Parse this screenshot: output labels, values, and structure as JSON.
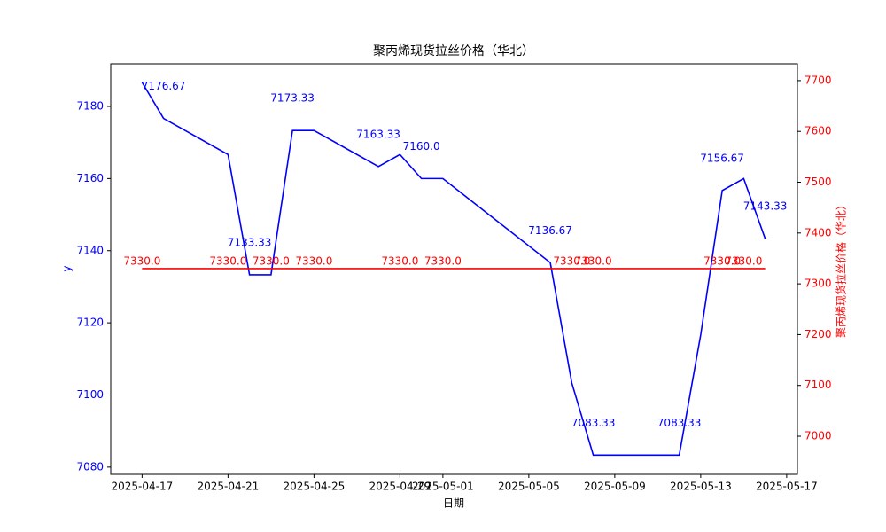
{
  "chart_data": {
    "type": "line",
    "title": "聚丙烯现货拉丝价格（华北）",
    "x_label": "日期",
    "y_label": "y",
    "y2_label": "聚丙烯现货拉丝价格（华北）",
    "x": [
      "2025-04-17",
      "2025-04-18",
      "2025-04-21",
      "2025-04-22",
      "2025-04-23",
      "2025-04-24",
      "2025-04-25",
      "2025-04-28",
      "2025-04-29",
      "2025-04-30",
      "2025-05-01",
      "2025-05-06",
      "2025-05-07",
      "2025-05-08",
      "2025-05-12",
      "2025-05-13",
      "2025-05-14",
      "2025-05-15",
      "2025-05-16"
    ],
    "series": [
      {
        "name": "y",
        "color": "#0000ff",
        "axis": "y",
        "values": [
          7186.67,
          7176.67,
          7166.67,
          7133.33,
          7133.33,
          7173.33,
          7173.33,
          7163.33,
          7166.67,
          7160,
          7160,
          7136.67,
          7103.33,
          7083.33,
          7083.33,
          7116.67,
          7156.67,
          7160,
          7143.33
        ],
        "value_labels": [
          null,
          "7176.67",
          null,
          "7133.33",
          null,
          "7173.33",
          null,
          "7163.33",
          null,
          "7160.0",
          null,
          "7136.67",
          null,
          "7083.33",
          "7083.33",
          null,
          "7156.67",
          null,
          "7143.33"
        ]
      },
      {
        "name": "聚丙烯现货拉丝价格（华北）",
        "color": "#ff0000",
        "axis": "y2",
        "values": [
          7330,
          7330,
          7330,
          7330,
          7330,
          7330,
          7330,
          7330,
          7330,
          7330,
          7330,
          7330,
          7330,
          7330,
          7330,
          7330,
          7330,
          7330,
          7330
        ],
        "value_labels": [
          "7330.0",
          null,
          "7330.0",
          null,
          "7330.0",
          null,
          "7330.0",
          null,
          "7330.0",
          null,
          "7330.0",
          null,
          "7330.0",
          "7330.0",
          null,
          null,
          "7330.0",
          "7330.0",
          null
        ]
      }
    ],
    "xlim": [
      "2025-04-15T13:00",
      "2025-05-17T12:00"
    ],
    "xticks": [
      "2025-04-17",
      "2025-04-21",
      "2025-04-25",
      "2025-04-29",
      "2025-05-01",
      "2025-05-05",
      "2025-05-09",
      "2025-05-13",
      "2025-05-17"
    ],
    "ylim": [
      7078,
      7191.8
    ],
    "yticks": [
      7080,
      7100,
      7120,
      7140,
      7160,
      7180
    ],
    "y2lim": [
      6925,
      7733
    ],
    "y2ticks": [
      7000,
      7100,
      7200,
      7300,
      7400,
      7500,
      7600,
      7700
    ]
  }
}
